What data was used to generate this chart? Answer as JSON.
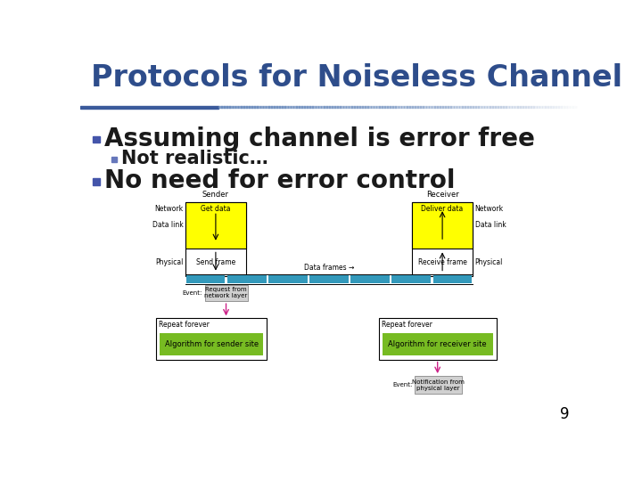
{
  "title": "Protocols for Noiseless Channel",
  "title_color": "#2E4D8B",
  "title_fontsize": 24,
  "title_fontweight": "bold",
  "bg_color": "#FFFFFF",
  "header_bar_color1": "#3A5A9B",
  "header_bar_color2": "#AABBDD",
  "bullet1": "Assuming channel is error free",
  "bullet1_fontsize": 20,
  "bullet2": "Not realistic…",
  "bullet2_fontsize": 15,
  "bullet3": "No need for error control",
  "bullet3_fontsize": 20,
  "bullet_color": "#1A1A1A",
  "sub_bullet_color": "#1A1A1A",
  "bullet_square_color1": "#4455AA",
  "bullet_square_color2": "#6677BB",
  "page_number": "9",
  "diagram": {
    "sender_label": "Sender",
    "receiver_label": "Receiver",
    "network_label": "Network",
    "data_link_label": "Data link",
    "physical_label": "Physical",
    "get_data_text": "Get data",
    "deliver_data_text": "Deliver data",
    "send_frame_text": "Send frame",
    "receive_frame_text": "Receive frame",
    "data_frames_text": "Data frames →",
    "yellow_color": "#FFFF00",
    "box_border_color": "#000000",
    "teal_color": "#3399BB",
    "event_box_color": "#D0D0D0",
    "event_box_border": "#888888",
    "green_algo_color": "#77BB22",
    "pink_arrow_color": "#CC2288",
    "algo_sender_text": "Algorithm for sender site",
    "algo_receiver_text": "Algorithm for receiver site",
    "repeat_forever_text": "Repeat forever",
    "event_sender_text": "Request from\nnetwork layer",
    "event_receiver_text": "Notification from\nphysical layer",
    "event_label": "Event:"
  }
}
